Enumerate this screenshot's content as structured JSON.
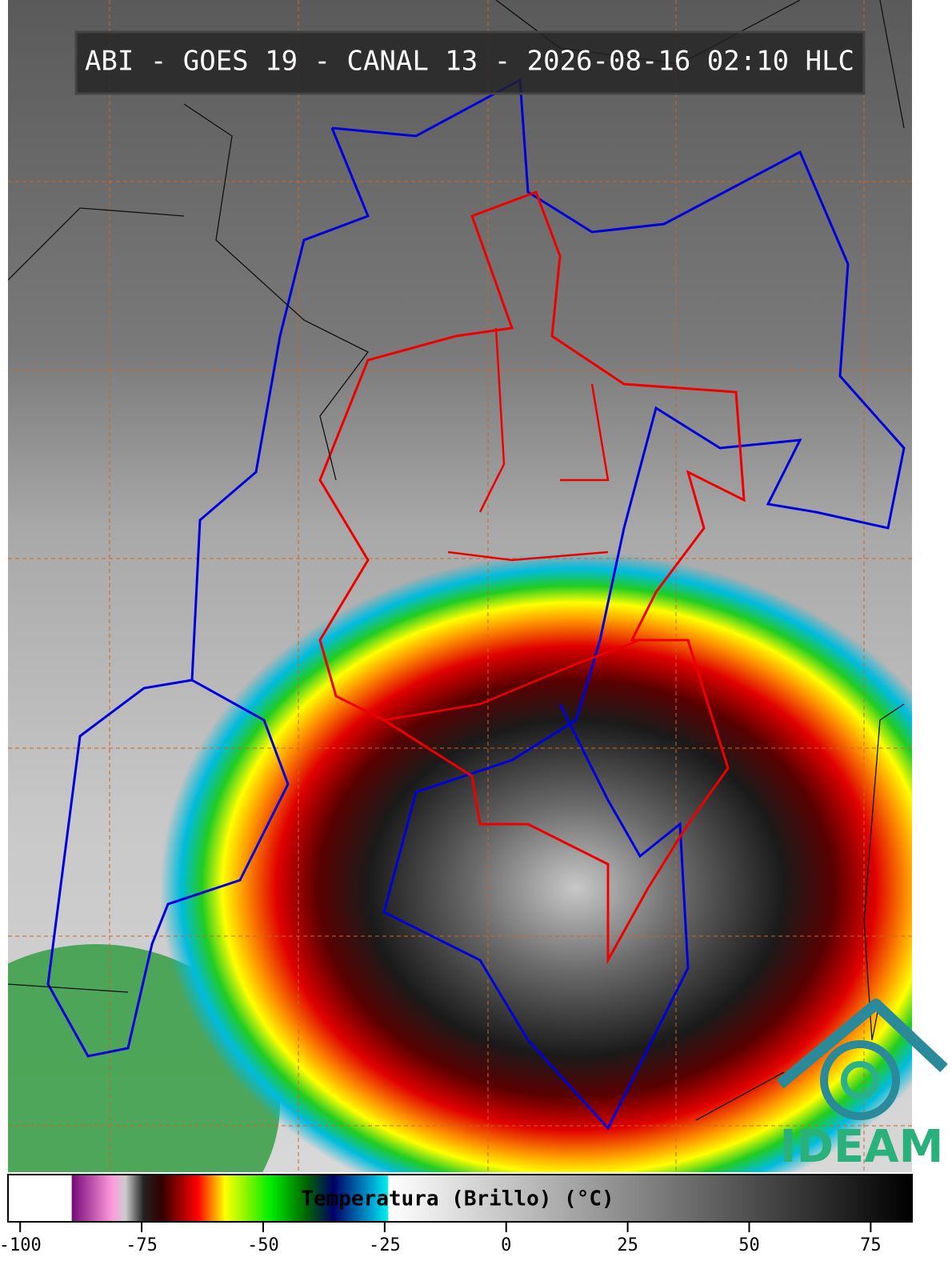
{
  "header": {
    "title": "ABI - GOES 19 - CANAL 13 - 2026-08-16 02:10 HLC"
  },
  "logo": {
    "text": "IDEAM"
  },
  "colorbar": {
    "label": "Temperatura (Brillo) (°C)",
    "lim": [
      -102.5,
      83.5
    ],
    "ticks": [
      -100,
      -75,
      -50,
      -25,
      0,
      25,
      50,
      75
    ]
  }
}
